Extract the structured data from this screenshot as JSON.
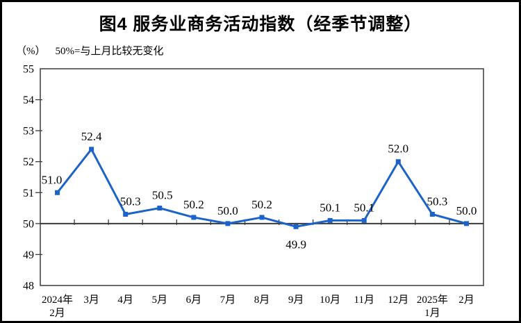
{
  "title": "图4  服务业商务活动指数（经季节调整）",
  "subtitle": {
    "unit": "（%）",
    "note": "50%=与上月比较无变化"
  },
  "chart_data": {
    "type": "line",
    "title": "图4 服务业商务活动指数（经季节调整）",
    "unit_label": "（%）",
    "annotation": "50%=与上月比较无变化",
    "categories": [
      [
        "2024年",
        "2月"
      ],
      [
        "3月"
      ],
      [
        "4月"
      ],
      [
        "5月"
      ],
      [
        "6月"
      ],
      [
        "7月"
      ],
      [
        "8月"
      ],
      [
        "9月"
      ],
      [
        "10月"
      ],
      [
        "11月"
      ],
      [
        "12月"
      ],
      [
        "2025年",
        "1月"
      ],
      [
        "2月"
      ]
    ],
    "series": [
      {
        "name": "服务业商务活动指数",
        "values": [
          51.0,
          52.4,
          50.3,
          50.5,
          50.2,
          50.0,
          50.2,
          49.9,
          50.1,
          50.1,
          52.0,
          50.3,
          50.0
        ]
      }
    ],
    "data_labels_shown": true,
    "label_pos": [
      "above",
      "above",
      "above",
      "above",
      "above",
      "above",
      "above",
      "below",
      "above",
      "above",
      "above",
      "above",
      "above"
    ],
    "label_dx": [
      -8,
      0,
      7,
      4,
      0,
      0,
      0,
      0,
      0,
      0,
      0,
      7,
      0
    ],
    "ylim": [
      48,
      55
    ],
    "ytick_step": 1,
    "yticks": [
      48,
      49,
      50,
      51,
      52,
      53,
      54,
      55
    ],
    "reference_line": 50,
    "grid": false,
    "legend": false,
    "marker": "square",
    "line_color": "#1B63C9",
    "axis_color": "#3A3A3A",
    "text_color": "#000000",
    "background_color": "#FFFFFF"
  }
}
